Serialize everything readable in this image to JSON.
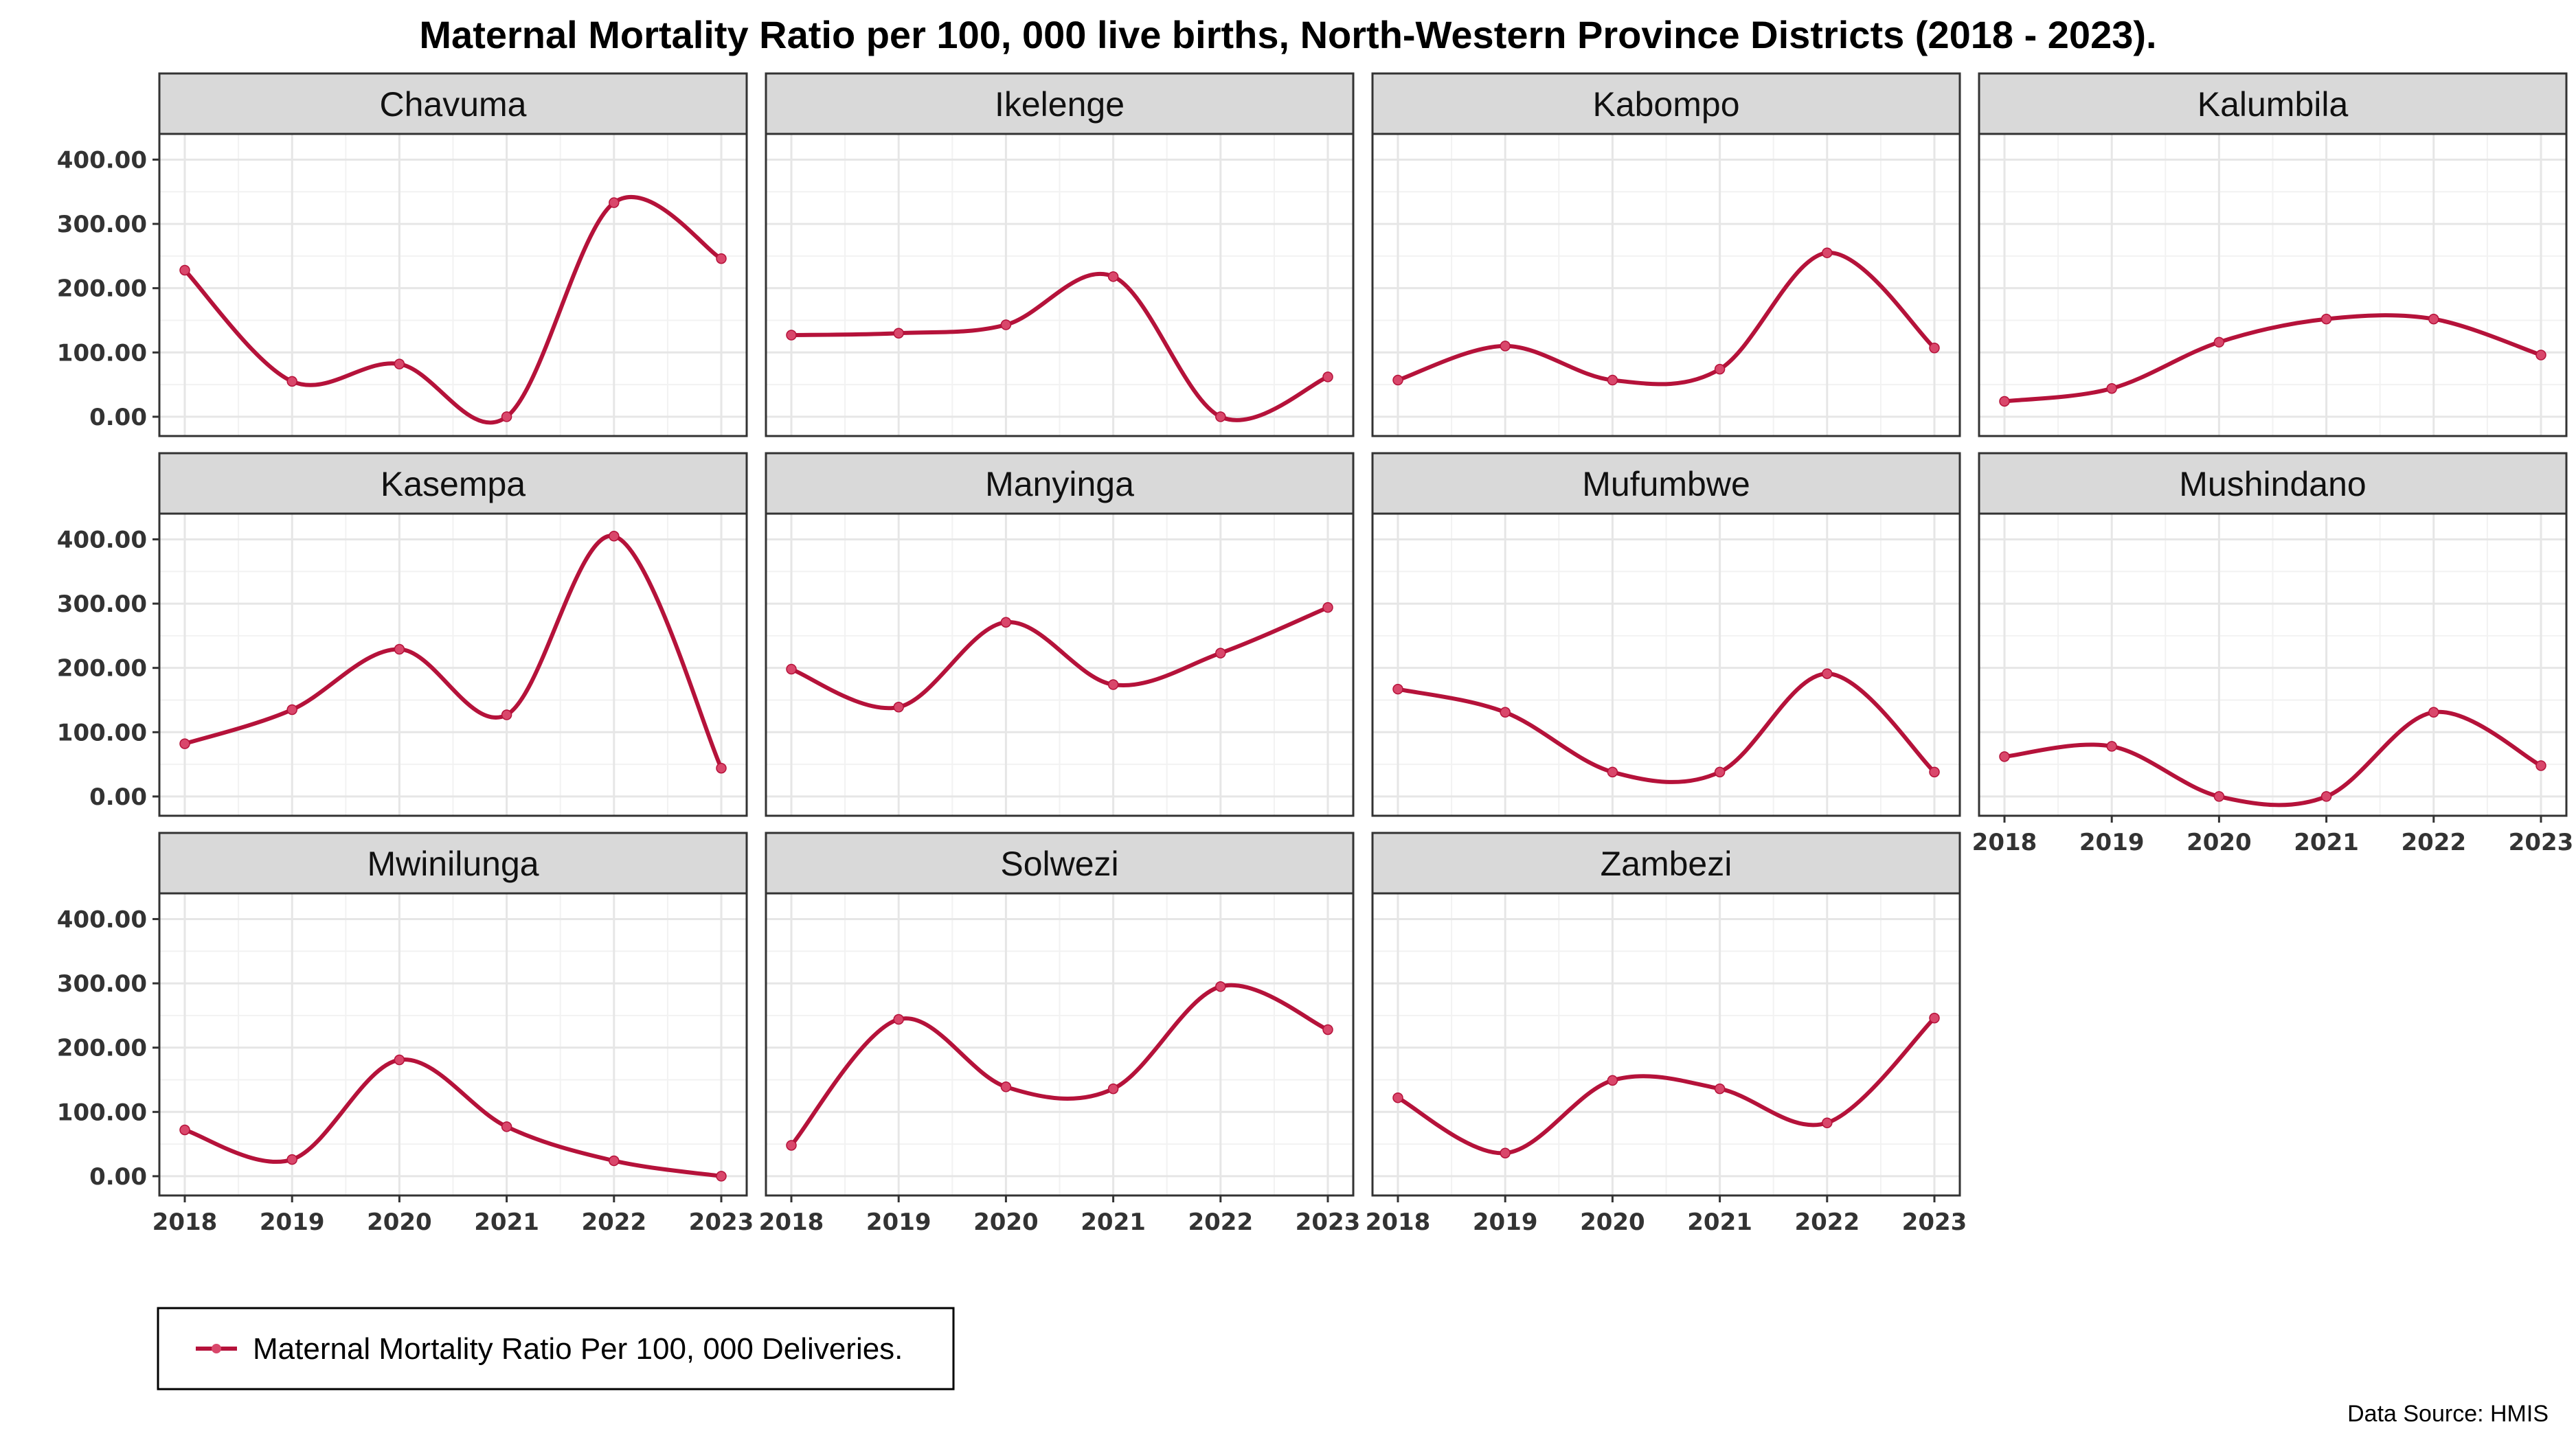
{
  "chart_data": {
    "type": "line",
    "title": "Maternal Mortality Ratio per 100, 000 live births, North-Western Province Districts (2018 - 2023).",
    "x": [
      "2018",
      "2019",
      "2020",
      "2021",
      "2022",
      "2023"
    ],
    "y_ticks": [
      "0.00",
      "100.00",
      "200.00",
      "300.00",
      "400.00"
    ],
    "ylim": [
      -30,
      440
    ],
    "grid": true,
    "line_color": "#b5123a",
    "point_color": "#d9476b",
    "legend": {
      "position": "bottom-left",
      "label": "Maternal Mortality Ratio Per 100, 000 Deliveries."
    },
    "source": "Data Source: HMIS",
    "panels": [
      {
        "name": "Chavuma",
        "values": [
          228,
          55,
          82,
          0,
          333,
          246
        ]
      },
      {
        "name": "Ikelenge",
        "values": [
          127,
          130,
          143,
          218,
          0,
          62
        ]
      },
      {
        "name": "Kabompo",
        "values": [
          57,
          110,
          57,
          74,
          255,
          107
        ]
      },
      {
        "name": "Kalumbila",
        "values": [
          24,
          44,
          116,
          152,
          152,
          96
        ]
      },
      {
        "name": "Kasempa",
        "values": [
          82,
          135,
          229,
          127,
          405,
          44
        ]
      },
      {
        "name": "Manyinga",
        "values": [
          198,
          139,
          271,
          174,
          223,
          294
        ]
      },
      {
        "name": "Mufumbwe",
        "values": [
          167,
          131,
          38,
          38,
          191,
          38
        ]
      },
      {
        "name": "Mushindano",
        "values": [
          62,
          78,
          0,
          0,
          131,
          48
        ]
      },
      {
        "name": "Mwinilunga",
        "values": [
          72,
          26,
          181,
          77,
          24,
          0
        ]
      },
      {
        "name": "Solwezi",
        "values": [
          48,
          244,
          139,
          136,
          295,
          228
        ]
      },
      {
        "name": "Zambezi",
        "values": [
          122,
          36,
          149,
          136,
          83,
          246
        ]
      }
    ]
  }
}
